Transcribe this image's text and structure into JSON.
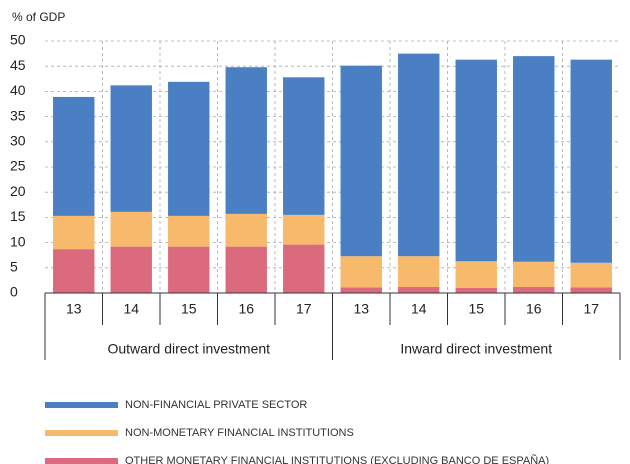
{
  "chart_data": {
    "type": "stacked_bar",
    "y_axis_label": "% of GDP",
    "categories": [
      "13",
      "14",
      "15",
      "16",
      "17",
      "13",
      "14",
      "15",
      "16",
      "17"
    ],
    "category_groups": [
      "Outward direct investment",
      "Inward direct investment"
    ],
    "series": [
      {
        "name": "NON-FINANCIAL PRIVATE SECTOR",
        "color": "#4a7fc3",
        "values": [
          23.6,
          25.1,
          26.6,
          29.1,
          27.3,
          37.8,
          40.2,
          40.0,
          40.8,
          40.3
        ]
      },
      {
        "name": "NON-MONETARY FINANCIAL INSTITUTIONS",
        "color": "#f7b96b",
        "values": [
          6.6,
          6.9,
          6.1,
          6.5,
          5.9,
          6.2,
          6.1,
          5.3,
          5.0,
          4.9
        ]
      },
      {
        "name": "OTHER MONETARY FINANCIAL INSTITUTIONS (EXCLUDING BANCO DE ESPAÑA)",
        "color": "#dc6a7e",
        "values": [
          8.7,
          9.2,
          9.2,
          9.2,
          9.6,
          1.1,
          1.2,
          1.0,
          1.2,
          1.1
        ]
      }
    ],
    "ylim": [
      0,
      50
    ],
    "yticks": [
      0,
      5,
      10,
      15,
      20,
      25,
      30,
      35,
      40,
      45,
      50
    ],
    "grid": true
  }
}
